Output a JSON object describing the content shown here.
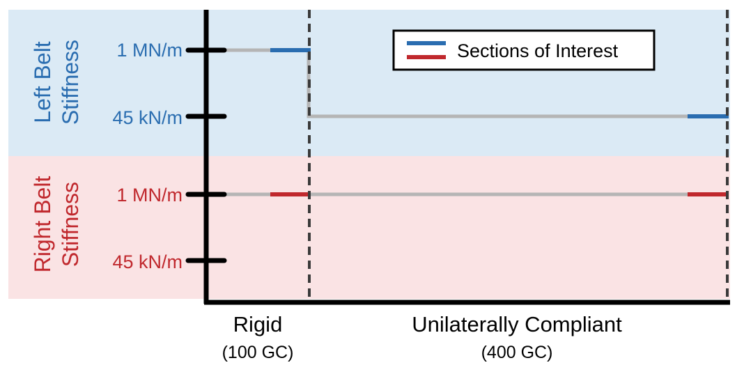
{
  "colors": {
    "left": "#2a6db0",
    "right": "#c0282d",
    "left_bg": "#dbeaf5",
    "right_bg": "#fae3e4",
    "trace": "#b5b5b5",
    "axis": "#000000",
    "divider": "#3a3a3a"
  },
  "left_section": {
    "title_line1": "Left Belt",
    "title_line2": "Stiffness",
    "tick_high": "1 MN/m",
    "tick_low": "45 kN/m"
  },
  "right_section": {
    "title_line1": "Right Belt",
    "title_line2": "Stiffness",
    "tick_high": "1 MN/m",
    "tick_low": "45 kN/m"
  },
  "phases": [
    {
      "name": "Rigid",
      "detail": "(100 GC)"
    },
    {
      "name": "Unilaterally Compliant",
      "detail": "(400 GC)"
    }
  ],
  "legend": {
    "label": "Sections of Interest"
  }
}
